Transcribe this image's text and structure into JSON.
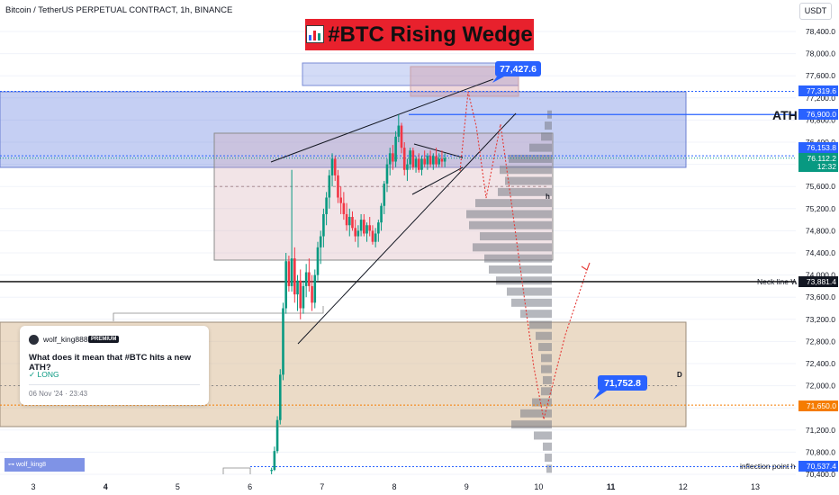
{
  "header": {
    "symbol": "Bitcoin / TetherUS PERPETUAL CONTRACT, 1h, BINANCE",
    "currency_button": "USDT"
  },
  "title": "#BTC Rising Wedge",
  "chart_data": {
    "type": "candlestick",
    "symbol": "BTCUSDT.P",
    "timeframe": "1h",
    "y_axis": {
      "range": [
        70400,
        78800
      ],
      "ticks": [
        "78,400.0",
        "78,000.0",
        "77,600.0",
        "77,200.0",
        "76,800.0",
        "76,400.0",
        "76,000.0",
        "75,600.0",
        "75,200.0",
        "74,800.0",
        "74,400.0",
        "74,000.0",
        "73,600.0",
        "73,200.0",
        "72,800.0",
        "72,400.0",
        "72,000.0",
        "71,600.0",
        "71,200.0",
        "70,800.0",
        "70,400.0"
      ]
    },
    "x_axis": {
      "ticks": [
        "3",
        "4",
        "5",
        "6",
        "7",
        "8",
        "9",
        "10",
        "11",
        "12",
        "13"
      ],
      "bold_ticks": [
        "4",
        "11"
      ]
    },
    "price_labels": [
      {
        "value": "77,319.6",
        "color": "#2962ff"
      },
      {
        "value": "76,900.0",
        "color": "#2962ff"
      },
      {
        "value": "76,153.8",
        "color": "#2962ff"
      },
      {
        "value": "76,112.2",
        "color": "#089981"
      },
      {
        "value": "12:32",
        "color": "#089981"
      },
      {
        "value": "73,881.4",
        "color": "#131722"
      },
      {
        "value": "71,650.0",
        "color": "#f57c00"
      },
      {
        "value": "70,537.4",
        "color": "#2962ff"
      }
    ],
    "annotations": {
      "ath": "ATH",
      "neckline": "Neck line W",
      "inflection": "inflection point h",
      "target_up": "77,427.6",
      "target_down": "71,752.8",
      "point_h": "h",
      "point_d": "D"
    },
    "levels": {
      "ath": 76900.0,
      "neckline": 73881.4,
      "orange": 71650.0,
      "inflection": 70537.4,
      "current": 76112.2
    },
    "candles": [
      {
        "x": 6.3,
        "o": 70460,
        "h": 70520,
        "l": 70400,
        "c": 70480
      },
      {
        "x": 6.34,
        "o": 70480,
        "h": 70900,
        "l": 70460,
        "c": 70820
      },
      {
        "x": 6.38,
        "o": 70820,
        "h": 71450,
        "l": 70780,
        "c": 71380
      },
      {
        "x": 6.42,
        "o": 71380,
        "h": 72300,
        "l": 71300,
        "c": 72200
      },
      {
        "x": 6.46,
        "o": 72200,
        "h": 73500,
        "l": 72100,
        "c": 73400
      },
      {
        "x": 6.5,
        "o": 73400,
        "h": 74400,
        "l": 73300,
        "c": 74250
      },
      {
        "x": 6.54,
        "o": 74250,
        "h": 74350,
        "l": 73700,
        "c": 73800
      },
      {
        "x": 6.58,
        "o": 73800,
        "h": 75900,
        "l": 73700,
        "c": 74300
      },
      {
        "x": 6.62,
        "o": 74300,
        "h": 74500,
        "l": 73500,
        "c": 73650
      },
      {
        "x": 6.66,
        "o": 73650,
        "h": 74000,
        "l": 73350,
        "c": 73900
      },
      {
        "x": 6.7,
        "o": 73900,
        "h": 74100,
        "l": 73200,
        "c": 73400
      },
      {
        "x": 6.74,
        "o": 73400,
        "h": 73900,
        "l": 73300,
        "c": 73800
      },
      {
        "x": 6.78,
        "o": 73800,
        "h": 74200,
        "l": 73600,
        "c": 74050
      },
      {
        "x": 6.82,
        "o": 74050,
        "h": 74300,
        "l": 73700,
        "c": 73800
      },
      {
        "x": 6.86,
        "o": 73800,
        "h": 74000,
        "l": 73350,
        "c": 73500
      },
      {
        "x": 6.9,
        "o": 73500,
        "h": 74100,
        "l": 73400,
        "c": 74000
      },
      {
        "x": 6.94,
        "o": 74000,
        "h": 74600,
        "l": 73900,
        "c": 74500
      },
      {
        "x": 6.98,
        "o": 74500,
        "h": 74800,
        "l": 74200,
        "c": 74700
      },
      {
        "x": 7.02,
        "o": 74700,
        "h": 75200,
        "l": 74500,
        "c": 75100
      },
      {
        "x": 7.06,
        "o": 75100,
        "h": 75500,
        "l": 74900,
        "c": 75400
      },
      {
        "x": 7.1,
        "o": 75400,
        "h": 75900,
        "l": 75200,
        "c": 75800
      },
      {
        "x": 7.14,
        "o": 75800,
        "h": 76200,
        "l": 75600,
        "c": 76100
      },
      {
        "x": 7.18,
        "o": 76100,
        "h": 76150,
        "l": 75700,
        "c": 75800
      },
      {
        "x": 7.22,
        "o": 75800,
        "h": 75900,
        "l": 75300,
        "c": 75400
      },
      {
        "x": 7.26,
        "o": 75400,
        "h": 75600,
        "l": 75100,
        "c": 75300
      },
      {
        "x": 7.3,
        "o": 75300,
        "h": 75500,
        "l": 75000,
        "c": 75100
      },
      {
        "x": 7.34,
        "o": 75100,
        "h": 75300,
        "l": 74800,
        "c": 74900
      },
      {
        "x": 7.38,
        "o": 74900,
        "h": 75200,
        "l": 74700,
        "c": 75050
      },
      {
        "x": 7.42,
        "o": 75050,
        "h": 75150,
        "l": 74800,
        "c": 74850
      },
      {
        "x": 7.46,
        "o": 74850,
        "h": 75000,
        "l": 74600,
        "c": 74700
      },
      {
        "x": 7.5,
        "o": 74700,
        "h": 74900,
        "l": 74500,
        "c": 74800
      },
      {
        "x": 7.54,
        "o": 74800,
        "h": 75100,
        "l": 74700,
        "c": 75000
      },
      {
        "x": 7.58,
        "o": 75000,
        "h": 75100,
        "l": 74700,
        "c": 74750
      },
      {
        "x": 7.62,
        "o": 74750,
        "h": 74950,
        "l": 74600,
        "c": 74900
      },
      {
        "x": 7.66,
        "o": 74900,
        "h": 75050,
        "l": 74700,
        "c": 74800
      },
      {
        "x": 7.7,
        "o": 74800,
        "h": 74900,
        "l": 74550,
        "c": 74600
      },
      {
        "x": 7.74,
        "o": 74600,
        "h": 74850,
        "l": 74500,
        "c": 74750
      },
      {
        "x": 7.78,
        "o": 74750,
        "h": 75000,
        "l": 74600,
        "c": 74950
      },
      {
        "x": 7.82,
        "o": 74950,
        "h": 75300,
        "l": 74800,
        "c": 75250
      },
      {
        "x": 7.86,
        "o": 75250,
        "h": 75700,
        "l": 75100,
        "c": 75650
      },
      {
        "x": 7.9,
        "o": 75650,
        "h": 76100,
        "l": 75500,
        "c": 76000
      },
      {
        "x": 7.94,
        "o": 76000,
        "h": 76300,
        "l": 75800,
        "c": 76200
      },
      {
        "x": 7.98,
        "o": 76200,
        "h": 76350,
        "l": 75900,
        "c": 76050
      },
      {
        "x": 8.02,
        "o": 76050,
        "h": 76600,
        "l": 75950,
        "c": 76500
      },
      {
        "x": 8.06,
        "o": 76500,
        "h": 76900,
        "l": 76400,
        "c": 76700
      },
      {
        "x": 8.1,
        "o": 76700,
        "h": 76750,
        "l": 76200,
        "c": 76300
      },
      {
        "x": 8.14,
        "o": 76300,
        "h": 76400,
        "l": 75800,
        "c": 75900
      },
      {
        "x": 8.18,
        "o": 75900,
        "h": 76100,
        "l": 75700,
        "c": 76000
      },
      {
        "x": 8.22,
        "o": 76000,
        "h": 76300,
        "l": 75900,
        "c": 76250
      },
      {
        "x": 8.26,
        "o": 76250,
        "h": 76300,
        "l": 75900,
        "c": 75950
      },
      {
        "x": 8.3,
        "o": 75950,
        "h": 76150,
        "l": 75850,
        "c": 76100
      },
      {
        "x": 8.34,
        "o": 76100,
        "h": 76200,
        "l": 75850,
        "c": 75900
      },
      {
        "x": 8.38,
        "o": 75900,
        "h": 76150,
        "l": 75800,
        "c": 76100
      },
      {
        "x": 8.42,
        "o": 76100,
        "h": 76250,
        "l": 75950,
        "c": 76000
      },
      {
        "x": 8.46,
        "o": 76000,
        "h": 76200,
        "l": 75900,
        "c": 76150
      },
      {
        "x": 8.5,
        "o": 76150,
        "h": 76250,
        "l": 75950,
        "c": 76000
      },
      {
        "x": 8.54,
        "o": 76000,
        "h": 76200,
        "l": 75900,
        "c": 76150
      },
      {
        "x": 8.58,
        "o": 76150,
        "h": 76300,
        "l": 75950,
        "c": 76000
      },
      {
        "x": 8.62,
        "o": 76000,
        "h": 76200,
        "l": 75950,
        "c": 76100
      },
      {
        "x": 8.66,
        "o": 76100,
        "h": 76250,
        "l": 75950,
        "c": 76050
      },
      {
        "x": 8.7,
        "o": 76050,
        "h": 76200,
        "l": 75950,
        "c": 76112
      }
    ],
    "volume_profile": [
      {
        "p": 76900,
        "w": 5
      },
      {
        "p": 76700,
        "w": 8
      },
      {
        "p": 76500,
        "w": 12
      },
      {
        "p": 76300,
        "w": 25
      },
      {
        "p": 76100,
        "w": 48
      },
      {
        "p": 75900,
        "w": 58
      },
      {
        "p": 75700,
        "w": 52
      },
      {
        "p": 75500,
        "w": 60
      },
      {
        "p": 75300,
        "w": 85
      },
      {
        "p": 75100,
        "w": 95
      },
      {
        "p": 74900,
        "w": 92
      },
      {
        "p": 74700,
        "w": 80
      },
      {
        "p": 74500,
        "w": 88
      },
      {
        "p": 74300,
        "w": 75
      },
      {
        "p": 74100,
        "w": 70
      },
      {
        "p": 73900,
        "w": 62
      },
      {
        "p": 73700,
        "w": 50
      },
      {
        "p": 73500,
        "w": 45
      },
      {
        "p": 73300,
        "w": 35
      },
      {
        "p": 73100,
        "w": 25
      },
      {
        "p": 72900,
        "w": 18
      },
      {
        "p": 72700,
        "w": 15
      },
      {
        "p": 72500,
        "w": 12
      },
      {
        "p": 72300,
        "w": 12
      },
      {
        "p": 72100,
        "w": 10
      },
      {
        "p": 71900,
        "w": 12
      },
      {
        "p": 71700,
        "w": 22
      },
      {
        "p": 71500,
        "w": 35
      },
      {
        "p": 71300,
        "w": 45
      },
      {
        "p": 71100,
        "w": 20
      },
      {
        "p": 70900,
        "w": 10
      },
      {
        "p": 70700,
        "w": 8
      },
      {
        "p": 70500,
        "w": 6
      }
    ]
  },
  "idea_card": {
    "username": "wolf_king888",
    "badge": "PREMIUM",
    "question": "What does it mean that #BTC hits a new ATH?",
    "position": "✓ LONG",
    "date": "06 Nov '24 · 23:43"
  },
  "watermark": "wolf_king8"
}
